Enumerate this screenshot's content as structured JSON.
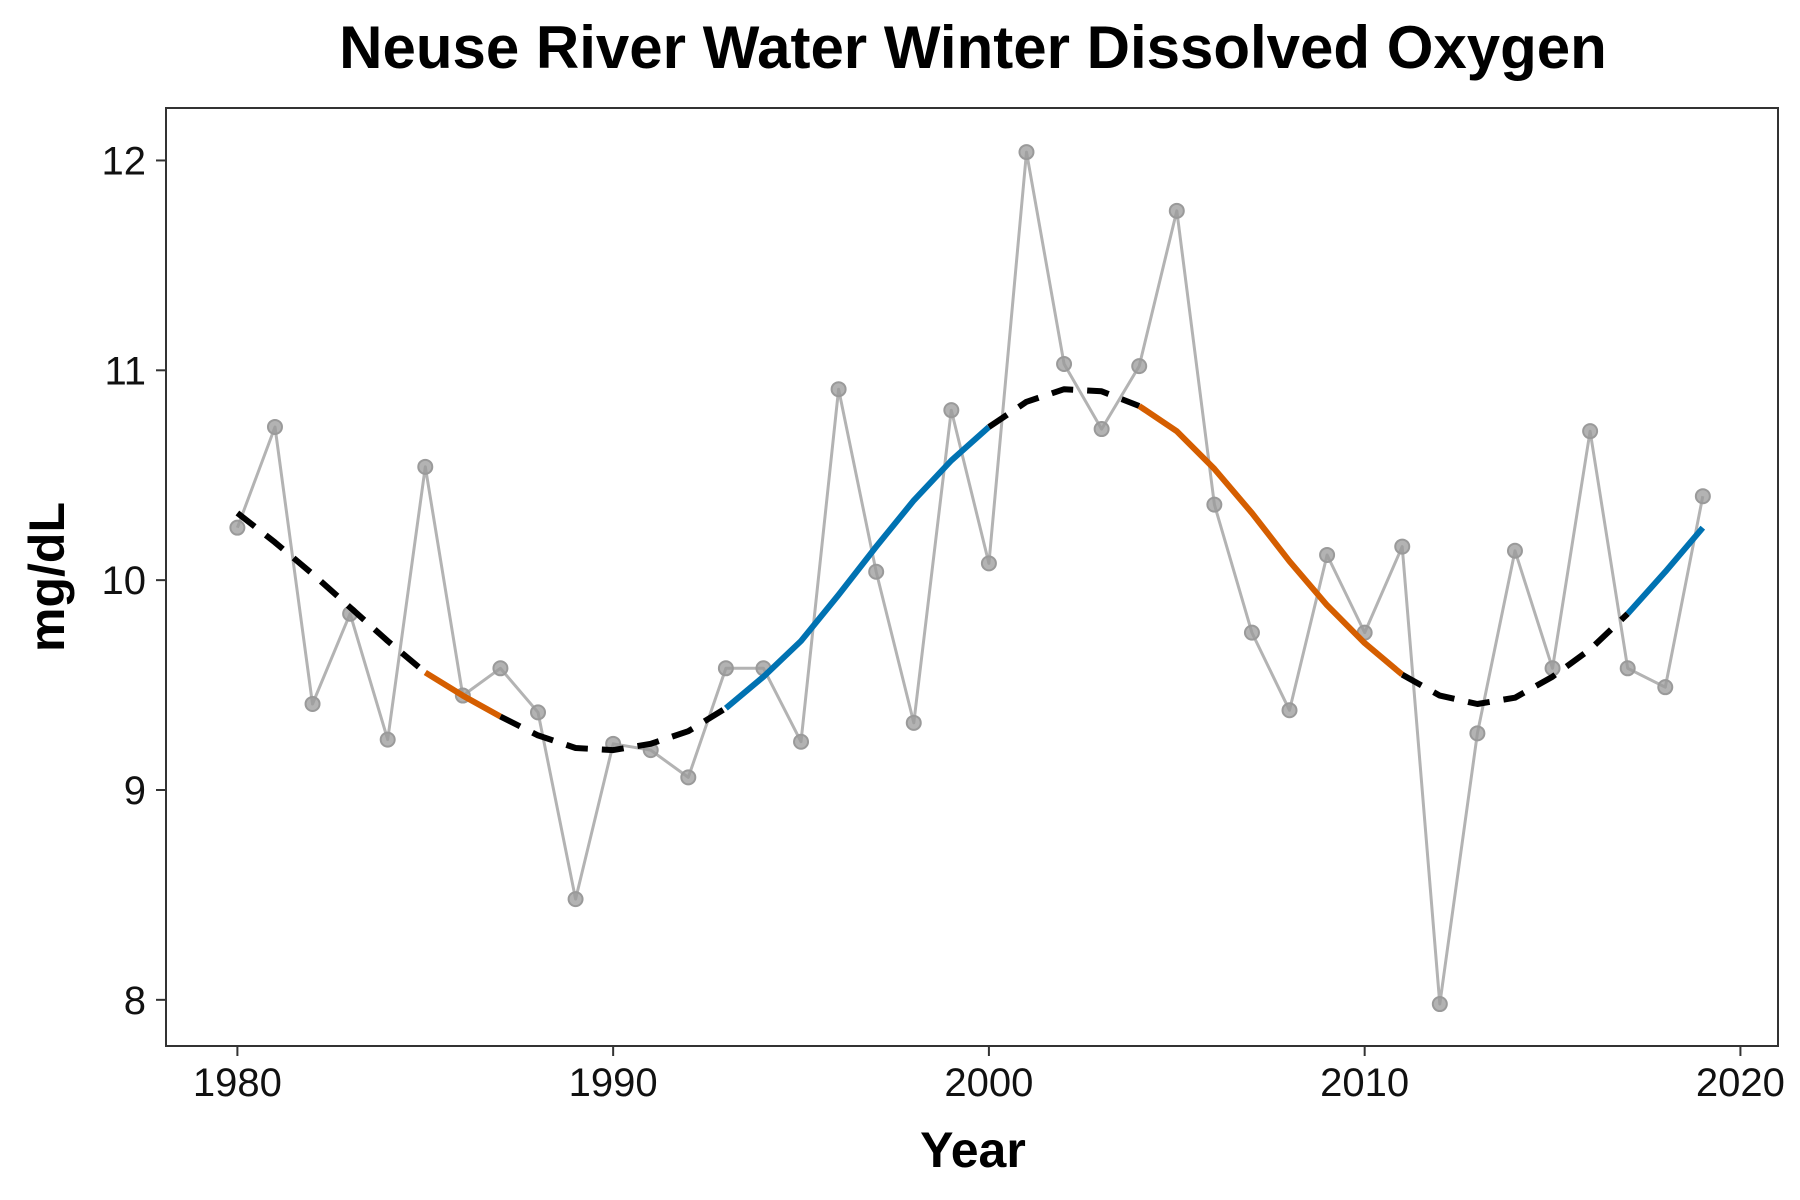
{
  "chart_data": {
    "type": "line",
    "title": "Neuse River Water Winter Dissolved Oxygen",
    "xlabel": "Year",
    "ylabel": "mg/dL",
    "xlim": [
      1978.1,
      2021.0
    ],
    "ylim": [
      7.78,
      12.25
    ],
    "x_ticks": [
      1980,
      1990,
      2000,
      2010,
      2020
    ],
    "y_ticks": [
      8,
      9,
      10,
      11,
      12
    ],
    "x_tick_labels": [
      "1980",
      "1990",
      "2000",
      "2010",
      "2020"
    ],
    "y_tick_labels": [
      "8",
      "9",
      "10",
      "11",
      "12"
    ],
    "grid": false,
    "legend": "none",
    "series": [
      {
        "x": [
          1980,
          1981,
          1982,
          1983,
          1984,
          1985,
          1986,
          1987,
          1988,
          1989,
          1990,
          1991,
          1992,
          1993,
          1994,
          1995,
          1996,
          1997,
          1998,
          1999,
          2000,
          2001,
          2002,
          2003,
          2004,
          2005,
          2006,
          2007,
          2008,
          2009,
          2010,
          2011,
          2012,
          2013,
          2014,
          2015,
          2016,
          2017,
          2018,
          2019
        ],
        "values": [
          10.25,
          10.73,
          9.41,
          9.84,
          9.24,
          10.54,
          9.45,
          9.58,
          9.37,
          8.48,
          9.22,
          9.19,
          9.06,
          9.58,
          9.58,
          9.23,
          10.91,
          10.04,
          9.32,
          10.81,
          10.08,
          12.04,
          11.03,
          10.72,
          11.02,
          11.76,
          10.36,
          9.75,
          9.38,
          10.12,
          9.75,
          10.16,
          7.98,
          9.27,
          10.14,
          9.58,
          10.71,
          9.58,
          9.49,
          10.4
        ],
        "color": "#b3b3b3"
      }
    ],
    "trend": {
      "x": [
        1980,
        1981,
        1982,
        1983,
        1984,
        1985,
        1986,
        1987,
        1988,
        1989,
        1990,
        1991,
        1992,
        1993,
        1994,
        1995,
        1996,
        1997,
        1998,
        1999,
        2000,
        2001,
        2002,
        2003,
        2004,
        2005,
        2006,
        2007,
        2008,
        2009,
        2010,
        2011,
        2012,
        2013,
        2014,
        2015,
        2016,
        2017,
        2018,
        2019
      ],
      "values": [
        10.32,
        10.18,
        10.03,
        9.87,
        9.71,
        9.56,
        9.45,
        9.35,
        9.26,
        9.2,
        9.19,
        9.22,
        9.28,
        9.39,
        9.54,
        9.71,
        9.93,
        10.16,
        10.38,
        10.57,
        10.73,
        10.85,
        10.91,
        10.9,
        10.83,
        10.71,
        10.53,
        10.32,
        10.09,
        9.88,
        9.7,
        9.55,
        9.45,
        9.41,
        9.44,
        9.54,
        9.67,
        9.84,
        10.04,
        10.25
      ],
      "segments": [
        {
          "from": 1980,
          "to": 1985,
          "style": "dashed",
          "color": "#000000"
        },
        {
          "from": 1985,
          "to": 1987,
          "style": "solid",
          "color": "#d55e00"
        },
        {
          "from": 1987,
          "to": 1993,
          "style": "dashed",
          "color": "#000000"
        },
        {
          "from": 1993,
          "to": 2000,
          "style": "solid",
          "color": "#0072b2"
        },
        {
          "from": 2000,
          "to": 2004,
          "style": "dashed",
          "color": "#000000"
        },
        {
          "from": 2004,
          "to": 2011,
          "style": "solid",
          "color": "#d55e00"
        },
        {
          "from": 2011,
          "to": 2017,
          "style": "dashed",
          "color": "#000000"
        },
        {
          "from": 2017,
          "to": 2019,
          "style": "solid",
          "color": "#0072b2"
        }
      ]
    }
  }
}
